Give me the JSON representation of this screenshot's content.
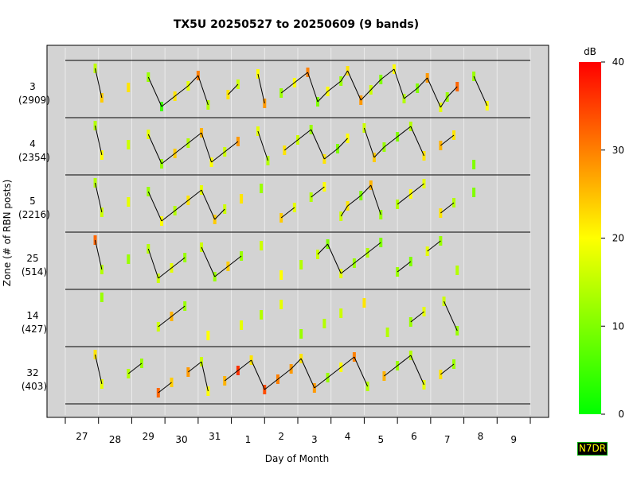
{
  "chart_data": {
    "type": "scatter",
    "title": "TX5U 20250527 to 20250609 (9 bands)",
    "xlabel": "Day of Month",
    "ylabel": "Zone (# of RBN posts)",
    "x_ticks": [
      "27",
      "28",
      "29",
      "30",
      "31",
      "1",
      "2",
      "3",
      "4",
      "5",
      "6",
      "7",
      "8",
      "9"
    ],
    "zones": [
      {
        "zone": "3",
        "posts": "(2909)"
      },
      {
        "zone": "4",
        "posts": "(2354)"
      },
      {
        "zone": "5",
        "posts": "(2216)"
      },
      {
        "zone": "25",
        "posts": "(514)"
      },
      {
        "zone": "14",
        "posts": "(427)"
      },
      {
        "zone": "32",
        "posts": "(403)"
      }
    ],
    "colorbar": {
      "label": "dB",
      "min": 0,
      "max": 40,
      "ticks": [
        "0",
        "10",
        "20",
        "30",
        "40"
      ],
      "colors": [
        "#00ff00",
        "#ffff00",
        "#ff0000"
      ]
    },
    "grid": true,
    "background": "#d3d3d3",
    "series": [
      {
        "zone": "3",
        "points": [
          [
            27.9,
            15
          ],
          [
            28.1,
            24
          ],
          [
            28.9,
            22
          ],
          [
            29.5,
            12
          ],
          [
            29.9,
            5
          ],
          [
            30.3,
            22
          ],
          [
            30.7,
            18
          ],
          [
            31.0,
            30
          ],
          [
            31.3,
            14
          ],
          [
            31.9,
            22
          ],
          [
            32.2,
            16
          ],
          [
            32.8,
            20
          ],
          [
            33.0,
            28
          ],
          [
            33.5,
            12
          ],
          [
            33.9,
            20
          ],
          [
            34.3,
            30
          ],
          [
            34.6,
            10
          ],
          [
            34.9,
            20
          ],
          [
            35.3,
            12
          ],
          [
            35.5,
            22
          ],
          [
            35.9,
            28
          ],
          [
            36.2,
            16
          ],
          [
            36.5,
            10
          ],
          [
            36.9,
            20
          ],
          [
            37.2,
            14
          ],
          [
            37.6,
            10
          ],
          [
            37.9,
            28
          ],
          [
            38.3,
            18
          ],
          [
            38.5,
            12
          ],
          [
            38.8,
            32
          ],
          [
            39.3,
            12
          ],
          [
            39.7,
            20
          ]
        ]
      },
      {
        "zone": "4",
        "points": [
          [
            27.9,
            14
          ],
          [
            28.1,
            20
          ],
          [
            28.9,
            16
          ],
          [
            29.5,
            18
          ],
          [
            29.9,
            12
          ],
          [
            30.3,
            24
          ],
          [
            30.7,
            14
          ],
          [
            31.1,
            26
          ],
          [
            31.4,
            20
          ],
          [
            31.8,
            16
          ],
          [
            32.2,
            28
          ],
          [
            32.8,
            18
          ],
          [
            33.1,
            14
          ],
          [
            33.6,
            22
          ],
          [
            34.0,
            16
          ],
          [
            34.4,
            12
          ],
          [
            34.8,
            22
          ],
          [
            35.2,
            10
          ],
          [
            35.5,
            20
          ],
          [
            36.0,
            16
          ],
          [
            36.3,
            24
          ],
          [
            36.6,
            12
          ],
          [
            37.0,
            10
          ],
          [
            37.4,
            14
          ],
          [
            37.8,
            22
          ],
          [
            38.3,
            26
          ],
          [
            38.7,
            22
          ],
          [
            39.3,
            10
          ]
        ]
      },
      {
        "zone": "5",
        "points": [
          [
            27.9,
            14
          ],
          [
            28.1,
            16
          ],
          [
            28.9,
            18
          ],
          [
            29.5,
            12
          ],
          [
            29.9,
            20
          ],
          [
            30.3,
            14
          ],
          [
            30.7,
            22
          ],
          [
            31.1,
            18
          ],
          [
            31.5,
            24
          ],
          [
            31.8,
            16
          ],
          [
            32.3,
            22
          ],
          [
            32.9,
            12
          ],
          [
            33.5,
            24
          ],
          [
            33.9,
            18
          ],
          [
            34.4,
            14
          ],
          [
            34.8,
            20
          ],
          [
            35.3,
            16
          ],
          [
            35.5,
            22
          ],
          [
            35.9,
            10
          ],
          [
            36.2,
            26
          ],
          [
            36.5,
            12
          ],
          [
            37.0,
            14
          ],
          [
            37.4,
            20
          ],
          [
            37.8,
            18
          ],
          [
            38.3,
            22
          ],
          [
            38.7,
            14
          ],
          [
            39.3,
            10
          ]
        ]
      },
      {
        "zone": "25",
        "points": [
          [
            27.9,
            32
          ],
          [
            28.1,
            14
          ],
          [
            28.9,
            12
          ],
          [
            29.5,
            14
          ],
          [
            29.8,
            16
          ],
          [
            30.2,
            18
          ],
          [
            30.6,
            12
          ],
          [
            31.1,
            16
          ],
          [
            31.5,
            12
          ],
          [
            31.9,
            24
          ],
          [
            32.3,
            12
          ],
          [
            32.9,
            16
          ],
          [
            33.5,
            20
          ],
          [
            34.1,
            14
          ],
          [
            34.6,
            16
          ],
          [
            34.9,
            10
          ],
          [
            35.3,
            18
          ],
          [
            35.7,
            12
          ],
          [
            36.1,
            14
          ],
          [
            36.5,
            10
          ],
          [
            37.0,
            12
          ],
          [
            37.4,
            10
          ],
          [
            37.9,
            18
          ],
          [
            38.3,
            12
          ],
          [
            38.8,
            14
          ]
        ]
      },
      {
        "zone": "14",
        "points": [
          [
            28.1,
            12
          ],
          [
            29.8,
            16
          ],
          [
            30.2,
            26
          ],
          [
            30.6,
            12
          ],
          [
            31.3,
            20
          ],
          [
            32.3,
            18
          ],
          [
            32.9,
            14
          ],
          [
            33.5,
            18
          ],
          [
            34.1,
            12
          ],
          [
            34.8,
            14
          ],
          [
            35.3,
            16
          ],
          [
            36.0,
            22
          ],
          [
            36.7,
            14
          ],
          [
            37.4,
            12
          ],
          [
            37.8,
            18
          ],
          [
            38.4,
            16
          ],
          [
            38.8,
            12
          ]
        ]
      },
      {
        "zone": "32",
        "points": [
          [
            27.9,
            22
          ],
          [
            28.1,
            18
          ],
          [
            28.9,
            14
          ],
          [
            29.3,
            12
          ],
          [
            29.8,
            32
          ],
          [
            30.2,
            24
          ],
          [
            30.7,
            28
          ],
          [
            31.1,
            16
          ],
          [
            31.3,
            20
          ],
          [
            31.8,
            26
          ],
          [
            32.2,
            36
          ],
          [
            32.6,
            22
          ],
          [
            33.0,
            34
          ],
          [
            33.4,
            30
          ],
          [
            33.8,
            28
          ],
          [
            34.1,
            22
          ],
          [
            34.5,
            28
          ],
          [
            34.9,
            12
          ],
          [
            35.3,
            20
          ],
          [
            35.7,
            30
          ],
          [
            36.1,
            14
          ],
          [
            36.6,
            26
          ],
          [
            37.0,
            12
          ],
          [
            37.4,
            14
          ],
          [
            37.8,
            18
          ],
          [
            38.3,
            22
          ],
          [
            38.7,
            12
          ]
        ]
      }
    ]
  },
  "badge": {
    "text": "N7DR"
  }
}
